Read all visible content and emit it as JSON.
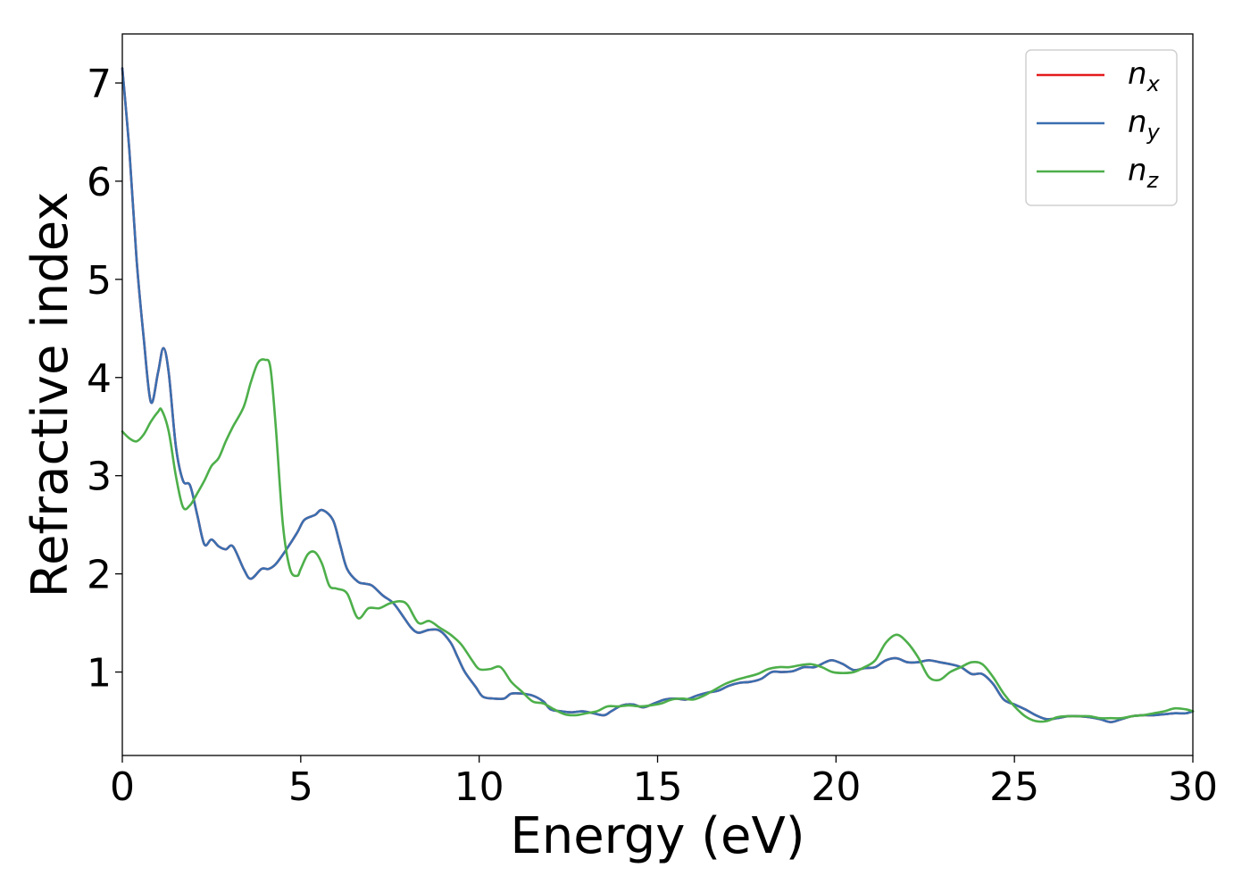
{
  "chart_data": {
    "type": "line",
    "xlabel": "Energy (eV)",
    "ylabel": "Refractive index",
    "xlim": [
      0,
      30
    ],
    "ylim": [
      0.15,
      7.5
    ],
    "xticks": [
      0,
      5,
      10,
      15,
      20,
      25,
      30
    ],
    "yticks": [
      1,
      2,
      3,
      4,
      5,
      6,
      7
    ],
    "xtick_labels": [
      "0",
      "5",
      "10",
      "15",
      "20",
      "25",
      "30"
    ],
    "ytick_labels": [
      "1",
      "2",
      "3",
      "4",
      "5",
      "6",
      "7"
    ],
    "grid": false,
    "legend_position": "top-right",
    "series": [
      {
        "name": "n_x",
        "legend_base": "n",
        "legend_sub": "x",
        "color": "#e41a1c",
        "x": [
          0,
          0.2,
          0.4,
          0.6,
          0.8,
          1.0,
          1.15,
          1.3,
          1.5,
          1.7,
          1.9,
          2.1,
          2.3,
          2.5,
          2.7,
          2.9,
          3.1,
          3.4,
          3.6,
          3.9,
          4.1,
          4.3,
          4.6,
          4.9,
          5.1,
          5.4,
          5.6,
          5.9,
          6.1,
          6.3,
          6.6,
          6.8,
          7.0,
          7.3,
          7.6,
          7.9,
          8.1,
          8.3,
          8.6,
          8.9,
          9.2,
          9.4,
          9.6,
          9.9,
          10.1,
          10.4,
          10.7,
          10.9,
          11.2,
          11.5,
          11.8,
          12.0,
          12.3,
          12.6,
          12.9,
          13.2,
          13.5,
          13.7,
          14.0,
          14.3,
          14.6,
          14.9,
          15.2,
          15.5,
          15.8,
          16.1,
          16.4,
          16.7,
          17.0,
          17.3,
          17.6,
          17.9,
          18.2,
          18.5,
          18.8,
          19.1,
          19.4,
          19.7,
          19.9,
          20.2,
          20.5,
          20.8,
          21.1,
          21.4,
          21.7,
          22.0,
          22.3,
          22.6,
          22.9,
          23.2,
          23.5,
          23.8,
          24.1,
          24.4,
          24.7,
          25.0,
          25.3,
          25.6,
          25.9,
          26.2,
          26.5,
          26.8,
          27.1,
          27.4,
          27.7,
          28.0,
          28.3,
          28.6,
          28.9,
          29.2,
          29.5,
          29.8,
          30.0
        ],
        "y": [
          7.15,
          6.3,
          5.2,
          4.4,
          3.75,
          4.05,
          4.3,
          4.05,
          3.3,
          2.95,
          2.9,
          2.6,
          2.3,
          2.35,
          2.28,
          2.25,
          2.28,
          2.05,
          1.95,
          2.05,
          2.05,
          2.1,
          2.25,
          2.42,
          2.55,
          2.6,
          2.65,
          2.55,
          2.3,
          2.05,
          1.92,
          1.9,
          1.88,
          1.78,
          1.7,
          1.55,
          1.45,
          1.4,
          1.43,
          1.42,
          1.3,
          1.15,
          1.0,
          0.85,
          0.75,
          0.73,
          0.73,
          0.78,
          0.78,
          0.76,
          0.7,
          0.62,
          0.6,
          0.59,
          0.6,
          0.58,
          0.56,
          0.6,
          0.66,
          0.67,
          0.64,
          0.68,
          0.72,
          0.73,
          0.72,
          0.76,
          0.79,
          0.81,
          0.86,
          0.89,
          0.9,
          0.93,
          1.0,
          1.0,
          1.01,
          1.05,
          1.05,
          1.1,
          1.12,
          1.08,
          1.02,
          1.04,
          1.05,
          1.12,
          1.14,
          1.1,
          1.1,
          1.12,
          1.1,
          1.08,
          1.05,
          0.98,
          0.98,
          0.88,
          0.72,
          0.67,
          0.62,
          0.56,
          0.52,
          0.53,
          0.55,
          0.55,
          0.54,
          0.52,
          0.49,
          0.52,
          0.55,
          0.56,
          0.56,
          0.57,
          0.58,
          0.58,
          0.6
        ]
      },
      {
        "name": "n_y",
        "legend_base": "n",
        "legend_sub": "y",
        "color": "#3a6fb0",
        "x": [
          0,
          0.2,
          0.4,
          0.6,
          0.8,
          1.0,
          1.15,
          1.3,
          1.5,
          1.7,
          1.9,
          2.1,
          2.3,
          2.5,
          2.7,
          2.9,
          3.1,
          3.4,
          3.6,
          3.9,
          4.1,
          4.3,
          4.6,
          4.9,
          5.1,
          5.4,
          5.6,
          5.9,
          6.1,
          6.3,
          6.6,
          6.8,
          7.0,
          7.3,
          7.6,
          7.9,
          8.1,
          8.3,
          8.6,
          8.9,
          9.2,
          9.4,
          9.6,
          9.9,
          10.1,
          10.4,
          10.7,
          10.9,
          11.2,
          11.5,
          11.8,
          12.0,
          12.3,
          12.6,
          12.9,
          13.2,
          13.5,
          13.7,
          14.0,
          14.3,
          14.6,
          14.9,
          15.2,
          15.5,
          15.8,
          16.1,
          16.4,
          16.7,
          17.0,
          17.3,
          17.6,
          17.9,
          18.2,
          18.5,
          18.8,
          19.1,
          19.4,
          19.7,
          19.9,
          20.2,
          20.5,
          20.8,
          21.1,
          21.4,
          21.7,
          22.0,
          22.3,
          22.6,
          22.9,
          23.2,
          23.5,
          23.8,
          24.1,
          24.4,
          24.7,
          25.0,
          25.3,
          25.6,
          25.9,
          26.2,
          26.5,
          26.8,
          27.1,
          27.4,
          27.7,
          28.0,
          28.3,
          28.6,
          28.9,
          29.2,
          29.5,
          29.8,
          30.0
        ],
        "y": [
          7.15,
          6.3,
          5.2,
          4.4,
          3.75,
          4.05,
          4.3,
          4.05,
          3.3,
          2.95,
          2.9,
          2.6,
          2.3,
          2.35,
          2.28,
          2.25,
          2.28,
          2.05,
          1.95,
          2.05,
          2.05,
          2.1,
          2.25,
          2.42,
          2.55,
          2.6,
          2.65,
          2.55,
          2.3,
          2.05,
          1.92,
          1.9,
          1.88,
          1.78,
          1.7,
          1.55,
          1.45,
          1.4,
          1.43,
          1.42,
          1.3,
          1.15,
          1.0,
          0.85,
          0.75,
          0.73,
          0.73,
          0.78,
          0.78,
          0.76,
          0.7,
          0.62,
          0.6,
          0.59,
          0.6,
          0.58,
          0.56,
          0.6,
          0.66,
          0.67,
          0.64,
          0.68,
          0.72,
          0.73,
          0.72,
          0.76,
          0.79,
          0.81,
          0.86,
          0.89,
          0.9,
          0.93,
          1.0,
          1.0,
          1.01,
          1.05,
          1.05,
          1.1,
          1.12,
          1.08,
          1.02,
          1.04,
          1.05,
          1.12,
          1.14,
          1.1,
          1.1,
          1.12,
          1.1,
          1.08,
          1.05,
          0.98,
          0.98,
          0.88,
          0.72,
          0.67,
          0.62,
          0.56,
          0.52,
          0.53,
          0.55,
          0.55,
          0.54,
          0.52,
          0.49,
          0.52,
          0.55,
          0.56,
          0.56,
          0.57,
          0.58,
          0.58,
          0.6
        ]
      },
      {
        "name": "n_z",
        "legend_base": "n",
        "legend_sub": "z",
        "color": "#4daf4a",
        "x": [
          0,
          0.2,
          0.4,
          0.6,
          0.8,
          1.0,
          1.1,
          1.3,
          1.5,
          1.7,
          1.9,
          2.1,
          2.3,
          2.5,
          2.7,
          2.9,
          3.1,
          3.4,
          3.6,
          3.8,
          4.0,
          4.15,
          4.3,
          4.5,
          4.7,
          4.9,
          5.0,
          5.2,
          5.4,
          5.6,
          5.8,
          6.0,
          6.3,
          6.6,
          6.9,
          7.2,
          7.5,
          7.8,
          8.0,
          8.3,
          8.6,
          8.9,
          9.2,
          9.5,
          9.8,
          10.0,
          10.3,
          10.6,
          10.9,
          11.2,
          11.5,
          11.8,
          12.1,
          12.4,
          12.7,
          13.0,
          13.3,
          13.6,
          13.9,
          14.2,
          14.5,
          14.8,
          15.1,
          15.4,
          15.7,
          16.0,
          16.3,
          16.6,
          16.9,
          17.2,
          17.5,
          17.8,
          18.1,
          18.4,
          18.7,
          19.0,
          19.3,
          19.6,
          19.9,
          20.2,
          20.5,
          20.8,
          21.1,
          21.4,
          21.7,
          22.0,
          22.3,
          22.6,
          22.9,
          23.2,
          23.5,
          23.8,
          24.1,
          24.4,
          24.7,
          25.0,
          25.3,
          25.6,
          25.9,
          26.2,
          26.5,
          26.8,
          27.1,
          27.4,
          27.7,
          28.0,
          28.3,
          28.6,
          28.9,
          29.2,
          29.5,
          29.8,
          30.0
        ],
        "y": [
          3.45,
          3.38,
          3.35,
          3.42,
          3.55,
          3.65,
          3.67,
          3.45,
          3.0,
          2.68,
          2.7,
          2.82,
          2.95,
          3.1,
          3.18,
          3.35,
          3.5,
          3.7,
          3.95,
          4.15,
          4.18,
          4.1,
          3.5,
          2.5,
          2.05,
          1.98,
          2.05,
          2.2,
          2.22,
          2.1,
          1.88,
          1.85,
          1.8,
          1.55,
          1.65,
          1.65,
          1.7,
          1.72,
          1.68,
          1.5,
          1.52,
          1.45,
          1.38,
          1.28,
          1.12,
          1.03,
          1.03,
          1.05,
          0.9,
          0.8,
          0.7,
          0.68,
          0.62,
          0.57,
          0.56,
          0.58,
          0.6,
          0.65,
          0.65,
          0.66,
          0.65,
          0.66,
          0.68,
          0.72,
          0.73,
          0.72,
          0.76,
          0.82,
          0.88,
          0.92,
          0.95,
          0.98,
          1.03,
          1.05,
          1.05,
          1.07,
          1.08,
          1.05,
          1.0,
          0.99,
          1.0,
          1.05,
          1.12,
          1.3,
          1.38,
          1.3,
          1.15,
          0.95,
          0.92,
          1.0,
          1.05,
          1.1,
          1.08,
          0.95,
          0.78,
          0.65,
          0.55,
          0.5,
          0.5,
          0.54,
          0.55,
          0.55,
          0.55,
          0.53,
          0.53,
          0.53,
          0.55,
          0.56,
          0.58,
          0.6,
          0.63,
          0.62,
          0.6
        ]
      }
    ]
  }
}
